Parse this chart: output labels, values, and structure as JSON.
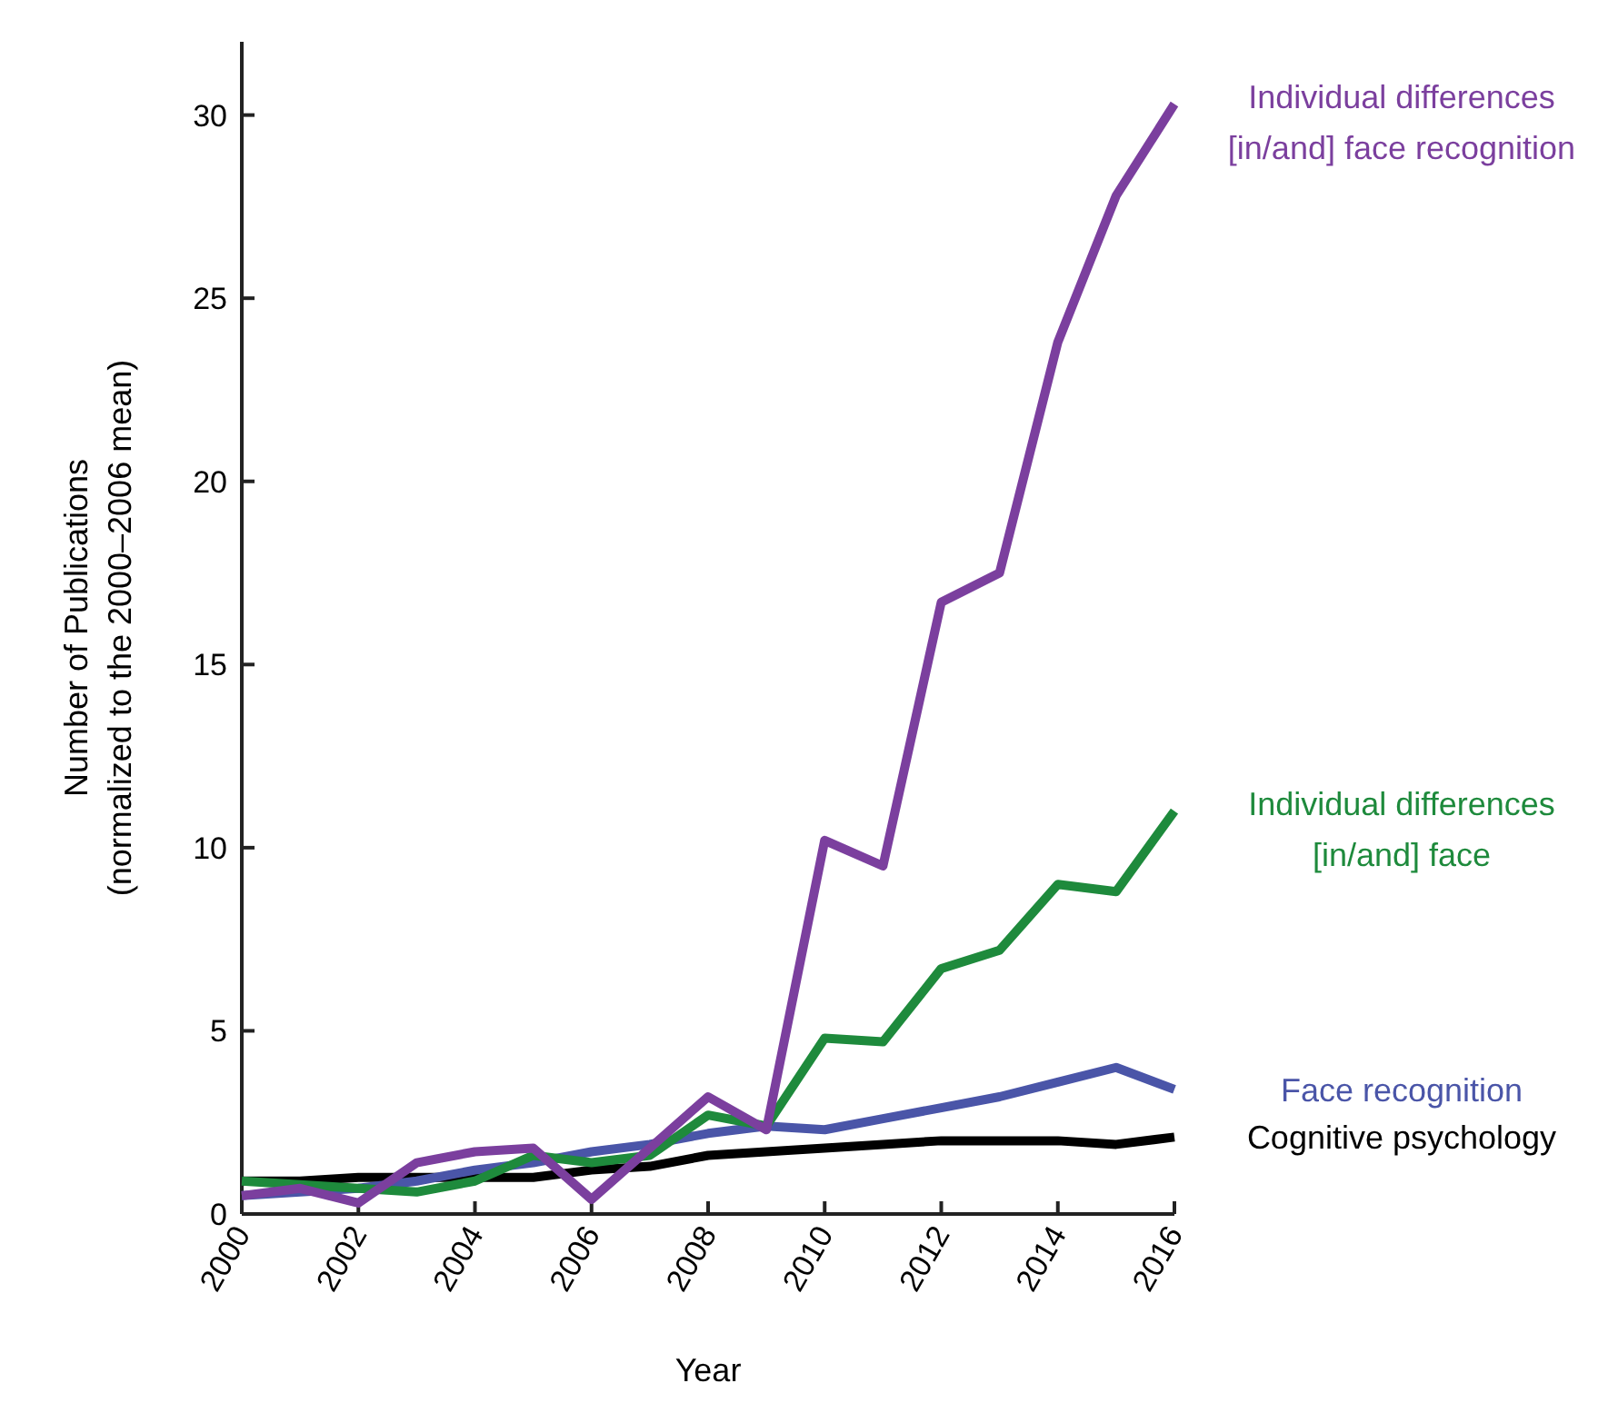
{
  "chart_data": {
    "type": "line",
    "xlabel": "Year",
    "ylabel": "Number of Publications\n(normalized to the 2000–2006 mean)",
    "x": [
      2000,
      2001,
      2002,
      2003,
      2004,
      2005,
      2006,
      2007,
      2008,
      2009,
      2010,
      2011,
      2012,
      2013,
      2014,
      2015,
      2016
    ],
    "xlim": [
      2000,
      2016
    ],
    "xticks": [
      2000,
      2002,
      2004,
      2006,
      2008,
      2010,
      2012,
      2014,
      2016
    ],
    "ylim": [
      0,
      32
    ],
    "yticks": [
      0,
      5,
      10,
      15,
      20,
      25,
      30
    ],
    "grid": false,
    "marker": "none",
    "line_style": "solid",
    "series": [
      {
        "name": "Cognitive psychology",
        "color": "#000000",
        "values": [
          0.9,
          0.9,
          1.0,
          1.0,
          1.0,
          1.0,
          1.2,
          1.3,
          1.6,
          1.7,
          1.8,
          1.9,
          2.0,
          2.0,
          2.0,
          1.9,
          2.1
        ]
      },
      {
        "name": "Face recognition",
        "color": "#4a55a8",
        "values": [
          0.5,
          0.6,
          0.7,
          0.9,
          1.2,
          1.4,
          1.7,
          1.9,
          2.2,
          2.4,
          2.3,
          2.6,
          2.9,
          3.2,
          3.6,
          4.0,
          3.4
        ]
      },
      {
        "name": "Individual differences [in/and] face",
        "color": "#1e8a3c",
        "values": [
          0.9,
          0.8,
          0.7,
          0.6,
          0.9,
          1.6,
          1.4,
          1.6,
          2.7,
          2.4,
          4.8,
          4.7,
          6.7,
          7.2,
          9.0,
          8.8,
          11.0
        ]
      },
      {
        "name": "Individual differences [in/and] face recognition",
        "color": "#7b3f9e",
        "values": [
          0.5,
          0.7,
          0.3,
          1.4,
          1.7,
          1.8,
          0.4,
          1.8,
          3.2,
          2.3,
          10.2,
          9.5,
          16.7,
          17.5,
          23.8,
          27.8,
          30.3
        ]
      }
    ]
  }
}
